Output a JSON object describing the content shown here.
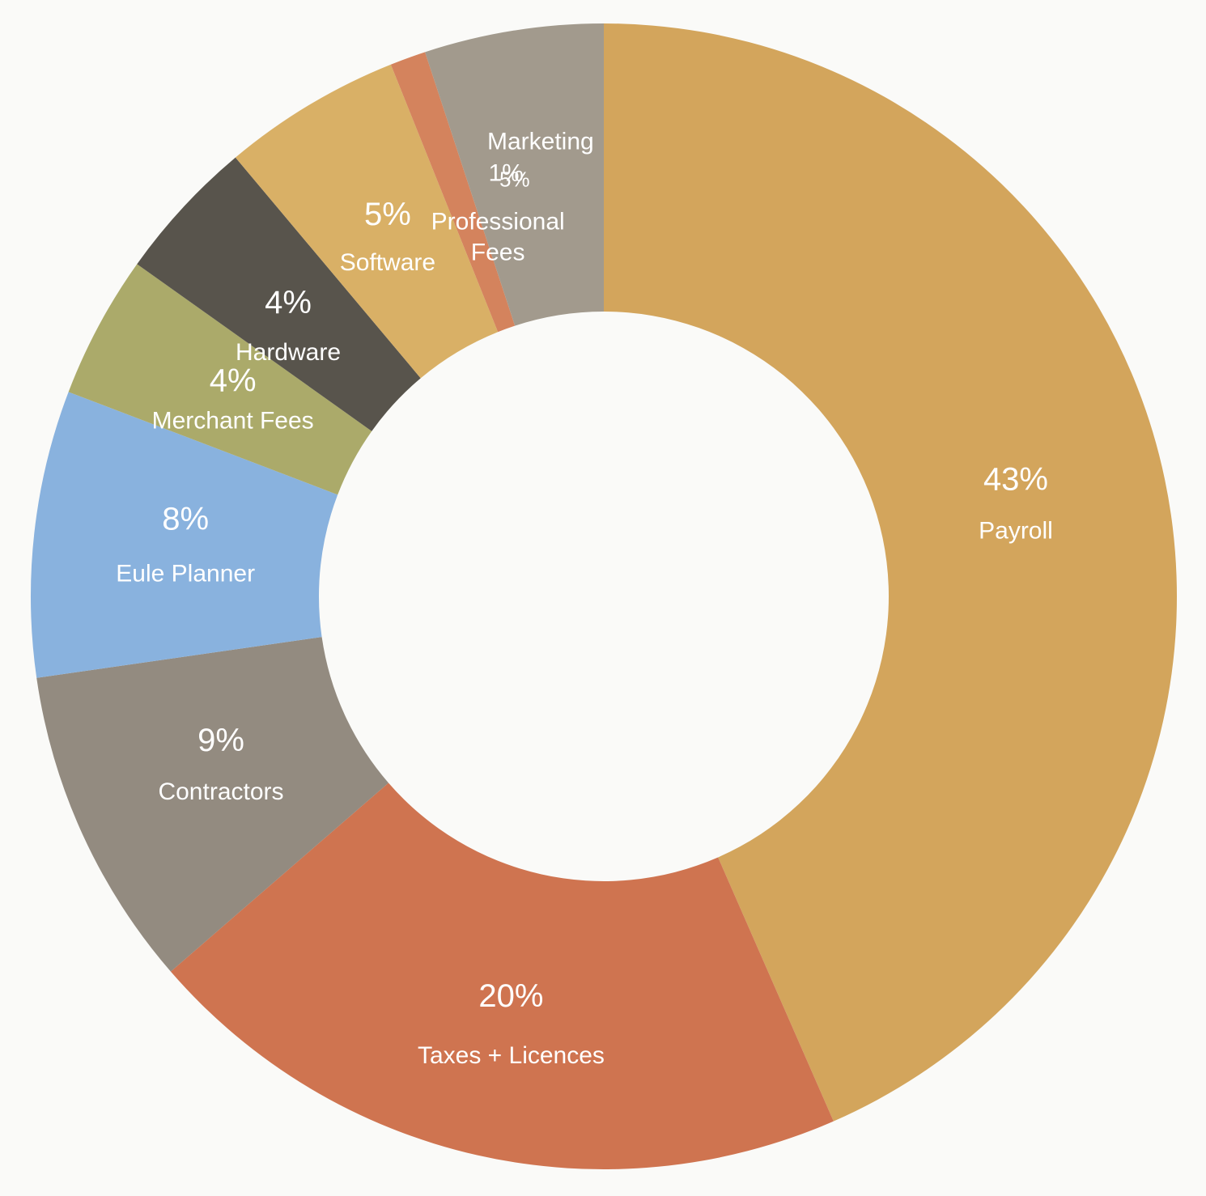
{
  "chart_data": {
    "type": "pie",
    "donut": true,
    "title": "",
    "legend": "none",
    "slices": [
      {
        "name": "Payroll",
        "value": 43,
        "value_label": "43%",
        "color": "#d3a55c"
      },
      {
        "name": "Taxes + Licences",
        "value": 20,
        "value_label": "20%",
        "color": "#cf7450"
      },
      {
        "name": "Contractors",
        "value": 9,
        "value_label": "9%",
        "color": "#938b80"
      },
      {
        "name": "Eule Planner",
        "value": 8,
        "value_label": "8%",
        "color": "#89b2de"
      },
      {
        "name": "Merchant Fees",
        "value": 4,
        "value_label": "4%",
        "color": "#abaa6a"
      },
      {
        "name": "Hardware",
        "value": 4,
        "value_label": "4%",
        "color": "#58544c"
      },
      {
        "name": "Software",
        "value": 5,
        "value_label": "5%",
        "color": "#d9b066"
      },
      {
        "name": "Professional\nFees",
        "value": 1,
        "value_label": "1%",
        "color": "#d4835d"
      },
      {
        "name": "Marketing",
        "value": 5,
        "value_label": "5%",
        "color": "#a29a8d"
      }
    ]
  }
}
